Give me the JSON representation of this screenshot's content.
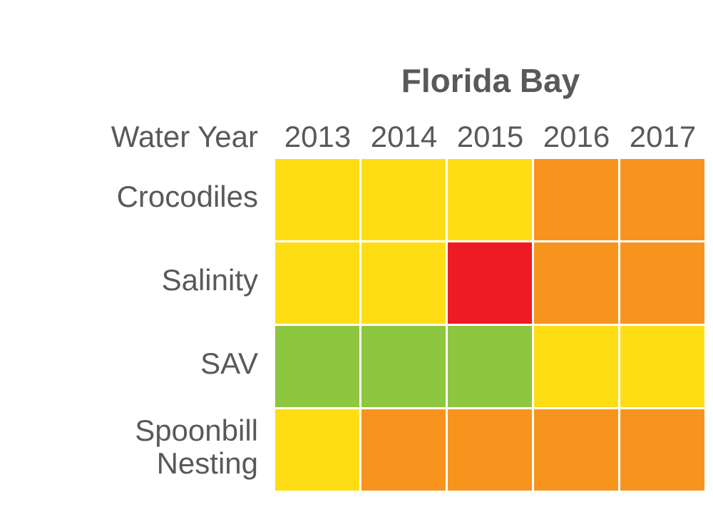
{
  "chart_data": {
    "type": "heatmap",
    "title": "Florida Bay",
    "xlabel": "Water Year",
    "columns": [
      "2013",
      "2014",
      "2015",
      "2016",
      "2017"
    ],
    "rows": [
      "Crocodiles",
      "Salinity",
      "SAV",
      "Spoonbill Nesting"
    ],
    "values": [
      [
        "yellow",
        "yellow",
        "yellow",
        "orange",
        "orange"
      ],
      [
        "yellow",
        "yellow",
        "red",
        "orange",
        "orange"
      ],
      [
        "green",
        "green",
        "green",
        "yellow",
        "yellow"
      ],
      [
        "yellow",
        "orange",
        "orange",
        "orange",
        "orange"
      ]
    ],
    "colors": {
      "green": "#8dc63f",
      "yellow": "#fedd15",
      "orange": "#f7941e",
      "red": "#ed1c24"
    }
  }
}
